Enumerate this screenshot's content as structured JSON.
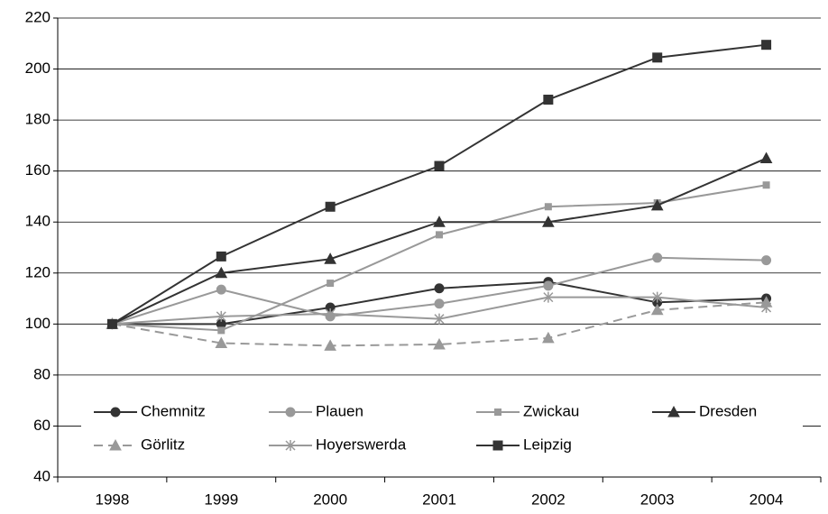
{
  "chart_data": {
    "type": "line",
    "categories": [
      "1998",
      "1999",
      "2000",
      "2001",
      "2002",
      "2003",
      "2004"
    ],
    "series": [
      {
        "name": "Chemnitz",
        "color": "#333333",
        "marker": "circle",
        "linestyle": "solid",
        "values": [
          100,
          100,
          106.5,
          114,
          116.5,
          108.5,
          110
        ]
      },
      {
        "name": "Plauen",
        "color": "#999999",
        "marker": "circle",
        "linestyle": "solid",
        "values": [
          100,
          113.5,
          103,
          108,
          115,
          126,
          125
        ]
      },
      {
        "name": "Zwickau",
        "color": "#999999",
        "marker": "small-square",
        "linestyle": "solid",
        "values": [
          100,
          97.5,
          116,
          135,
          146,
          147.5,
          154.5
        ]
      },
      {
        "name": "Dresden",
        "color": "#333333",
        "marker": "triangle",
        "linestyle": "solid",
        "values": [
          100,
          120,
          125.5,
          140,
          140,
          146.5,
          165
        ]
      },
      {
        "name": "Görlitz",
        "color": "#999999",
        "marker": "triangle",
        "linestyle": "dashed",
        "values": [
          100,
          92.5,
          91.5,
          92,
          94.5,
          105.5,
          108.5
        ]
      },
      {
        "name": "Hoyerswerda",
        "color": "#999999",
        "marker": "asterisk",
        "linestyle": "solid",
        "values": [
          100,
          103,
          104,
          102,
          110.5,
          110.5,
          106.5
        ]
      },
      {
        "name": "Leipzig",
        "color": "#333333",
        "marker": "square",
        "linestyle": "solid",
        "values": [
          100,
          126.5,
          146,
          162,
          188,
          204.5,
          209.5
        ]
      }
    ],
    "ylim": [
      40,
      220
    ],
    "yticks": [
      40,
      60,
      80,
      100,
      120,
      140,
      160,
      180,
      200,
      220
    ],
    "grid": true,
    "legend": "bottom"
  }
}
